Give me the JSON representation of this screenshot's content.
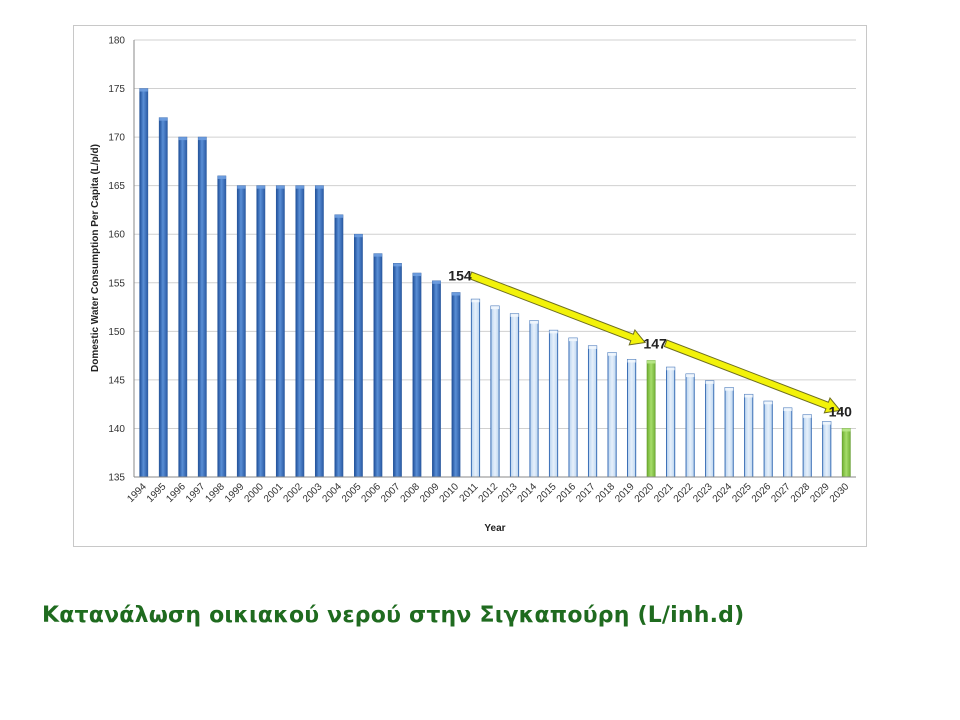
{
  "caption": "Κατανάλωση οικιακού νερού στην Σιγκαπούρη (L/inh.d)",
  "colors": {
    "historical": "#3b6fb6",
    "projected": "#c7ddf3",
    "projected_border": "#3b6fb6",
    "milestone": "#8cc94b",
    "arrow_fill": "#f2f20a",
    "arrow_stroke": "#6e6e20",
    "grid": "#d0d0d0"
  },
  "chart_data": {
    "type": "bar",
    "title": "",
    "xlabel": "Year",
    "ylabel": "Domestic Water Consumption Per Capita  (L/p/d)",
    "ylim": [
      135,
      180
    ],
    "yticks": [
      135,
      140,
      145,
      150,
      155,
      160,
      165,
      170,
      175,
      180
    ],
    "grid": true,
    "legend": "none",
    "categories": [
      "1994",
      "1995",
      "1996",
      "1997",
      "1998",
      "1999",
      "2000",
      "2001",
      "2002",
      "2003",
      "2004",
      "2005",
      "2006",
      "2007",
      "2008",
      "2009",
      "2010",
      "2011",
      "2012",
      "2013",
      "2014",
      "2015",
      "2016",
      "2017",
      "2018",
      "2019",
      "2020",
      "2021",
      "2022",
      "2023",
      "2024",
      "2025",
      "2026",
      "2027",
      "2028",
      "2029",
      "2030"
    ],
    "values": [
      175,
      172,
      170,
      170,
      166,
      165,
      165,
      165,
      165,
      165,
      162,
      160,
      158,
      157,
      156,
      155.2,
      154,
      153.3,
      152.6,
      151.8,
      151.1,
      150.1,
      149.3,
      148.5,
      147.8,
      147.1,
      147,
      146.3,
      145.6,
      144.9,
      144.2,
      143.5,
      142.8,
      142.1,
      141.4,
      140.7,
      140
    ],
    "bar_kind": [
      "historical",
      "historical",
      "historical",
      "historical",
      "historical",
      "historical",
      "historical",
      "historical",
      "historical",
      "historical",
      "historical",
      "historical",
      "historical",
      "historical",
      "historical",
      "historical",
      "historical",
      "projected",
      "projected",
      "projected",
      "projected",
      "projected",
      "projected",
      "projected",
      "projected",
      "projected",
      "milestone",
      "projected",
      "projected",
      "projected",
      "projected",
      "projected",
      "projected",
      "projected",
      "projected",
      "projected",
      "milestone"
    ],
    "annotations": [
      {
        "text": "154",
        "year": "2010"
      },
      {
        "text": "147",
        "year": "2020"
      },
      {
        "text": "140",
        "year": "2030"
      }
    ],
    "trend_arrows": [
      {
        "from_year": "2011",
        "to_year": "2020"
      },
      {
        "from_year": "2021",
        "to_year": "2030"
      }
    ]
  }
}
